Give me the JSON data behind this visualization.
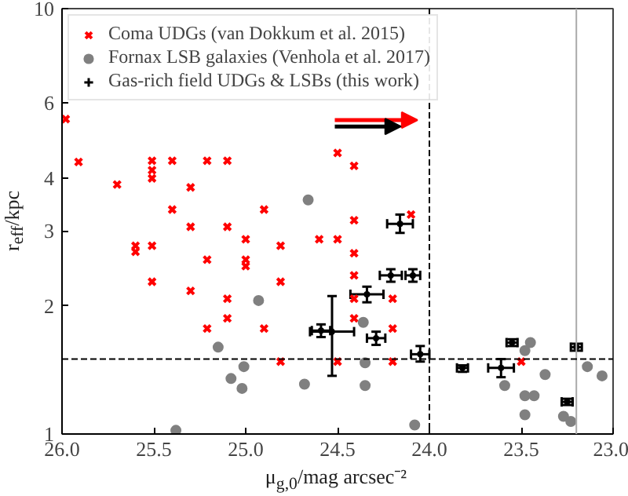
{
  "chart_data": {
    "type": "scatter",
    "xlabel": "μ$_{g,0}$/mag arcsec⁻²",
    "ylabel": "r$_{eff}$/kpc",
    "xlim": [
      26.0,
      23.0
    ],
    "xticks": [
      {
        "value": 26.0,
        "label": "26.0"
      },
      {
        "value": 25.5,
        "label": "25.5"
      },
      {
        "value": 25.0,
        "label": "25.0"
      },
      {
        "value": 24.5,
        "label": "24.5"
      },
      {
        "value": 24.0,
        "label": "24.0"
      },
      {
        "value": 23.5,
        "label": "23.5"
      },
      {
        "value": 23.0,
        "label": "23.0"
      }
    ],
    "ylim": [
      1,
      10
    ],
    "yticks": [
      1,
      2,
      3,
      4,
      6,
      10
    ],
    "log": "y",
    "grid": false,
    "legend": "top left",
    "ref_lines": [
      {
        "axis": "x",
        "value": 24.0,
        "line_style": "dashed",
        "color": "#000000"
      },
      {
        "axis": "x",
        "value": 23.2,
        "line_style": "solid",
        "color": "#aaaaaa"
      },
      {
        "axis": "y",
        "value": 1.5,
        "line_style": "dashed",
        "color": "#000000"
      }
    ],
    "series": [
      {
        "name": "Coma UDGs (van Dokkum et al. 2015)",
        "color": "#ff0000",
        "marker": "x",
        "x": [
          25.98,
          25.91,
          25.51,
          25.51,
          25.51,
          25.4,
          25.21,
          25.1,
          25.7,
          25.3,
          25.4,
          24.9,
          25.3,
          25.1,
          24.5,
          24.41,
          24.41,
          24.1,
          25.0,
          24.81,
          24.6,
          24.5,
          25.6,
          25.6,
          25.51,
          25.21,
          25.0,
          25.0,
          25.51,
          24.81,
          25.3,
          25.1,
          25.1,
          25.21,
          24.9,
          24.81,
          24.5,
          24.41,
          24.41,
          24.41,
          24.2,
          24.41,
          24.2,
          24.2,
          23.5
        ],
        "values": [
          5.5,
          4.36,
          4.39,
          4.17,
          3.99,
          4.39,
          4.39,
          4.39,
          3.86,
          3.8,
          3.37,
          3.37,
          3.07,
          3.07,
          4.58,
          4.27,
          3.18,
          3.28,
          2.87,
          2.77,
          2.87,
          2.87,
          2.77,
          2.68,
          2.77,
          2.57,
          2.57,
          2.48,
          2.28,
          2.28,
          2.17,
          2.08,
          1.87,
          1.77,
          1.77,
          1.48,
          1.48,
          2.66,
          2.36,
          2.08,
          2.08,
          1.87,
          1.77,
          1.48,
          1.48
        ]
      },
      {
        "name": "Fornax LSB galaxies (Venhola et al. 2017)",
        "color": "#808080",
        "marker": "circle",
        "x": [
          24.66,
          24.93,
          25.15,
          25.01,
          25.08,
          25.02,
          24.68,
          25.38,
          24.36,
          24.35,
          24.35,
          24.08,
          23.48,
          23.45,
          23.37,
          23.59,
          23.48,
          23.43,
          23.48,
          23.27,
          23.23,
          23.14,
          23.06
        ],
        "values": [
          3.55,
          2.06,
          1.6,
          1.44,
          1.35,
          1.28,
          1.31,
          1.02,
          1.83,
          1.47,
          1.3,
          1.05,
          1.57,
          1.64,
          1.38,
          1.3,
          1.23,
          1.23,
          1.11,
          1.1,
          1.07,
          1.44,
          1.37
        ]
      },
      {
        "name": "Gas-rich field UDGs & LSBs (this work)",
        "color": "#000000",
        "x": [
          24.16,
          24.21,
          24.09,
          24.34,
          24.29,
          24.05,
          24.53,
          24.59,
          23.82,
          23.61,
          23.55,
          23.2,
          23.25
        ],
        "values": [
          3.12,
          2.36,
          2.36,
          2.13,
          1.68,
          1.54,
          1.74,
          1.75,
          1.43,
          1.43,
          1.64,
          1.6,
          1.19
        ],
        "errors": [
          [
            2.97,
            3.28
          ],
          [
            2.28,
            2.44
          ],
          [
            2.28,
            2.44
          ],
          [
            2.04,
            2.22
          ],
          [
            1.62,
            1.74
          ],
          [
            1.48,
            1.61
          ],
          [
            1.37,
            2.11
          ],
          [
            1.69,
            1.81
          ],
          [
            1.4,
            1.45
          ],
          [
            1.36,
            1.5
          ],
          [
            1.61,
            1.67
          ],
          [
            1.57,
            1.63
          ],
          [
            1.17,
            1.21
          ]
        ],
        "xerrors": [
          0.07,
          0.06,
          0.04,
          0.09,
          0.05,
          0.05,
          0.12,
          0.05,
          0.03,
          0.07,
          0.03,
          0.03,
          0.03
        ]
      }
    ]
  }
}
